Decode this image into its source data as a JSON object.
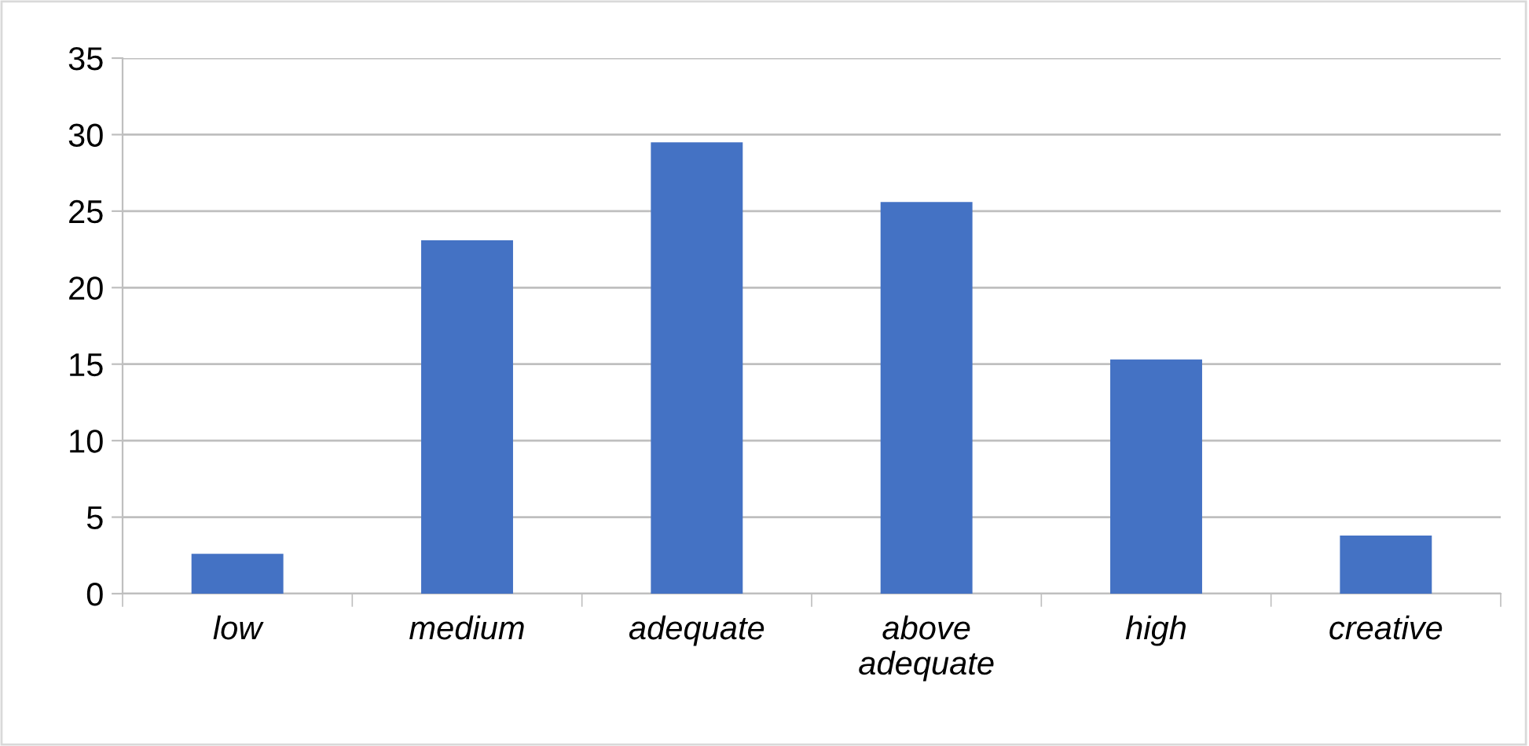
{
  "chart_data": {
    "type": "bar",
    "categories": [
      "low",
      "medium",
      "adequate",
      "above\nadequate",
      "high",
      "creative"
    ],
    "values": [
      2.6,
      23.1,
      29.5,
      25.6,
      15.3,
      3.8
    ],
    "color": "#4472c4",
    "ylim": [
      0,
      35
    ],
    "yticks": [
      0,
      5,
      10,
      15,
      20,
      25,
      30,
      35
    ],
    "grid": "y"
  }
}
